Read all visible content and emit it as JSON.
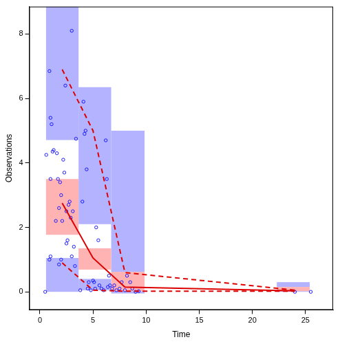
{
  "chart_data": {
    "type": "scatter",
    "x_label": "Time",
    "y_label": "Observations",
    "xlim": [
      -1,
      27.6
    ],
    "xticks": [
      0,
      5,
      10,
      15,
      20,
      25
    ],
    "ylim": [
      -0.56,
      8.85
    ],
    "yticks": [
      0,
      2,
      4,
      6,
      8
    ],
    "grid": false,
    "bands": [
      {
        "color": "#b3b3ff",
        "x0": 0.58,
        "x1": 3.64,
        "y0": 4.71,
        "y1": 8.85
      },
      {
        "color": "#b3b3ff",
        "x0": 3.64,
        "x1": 6.71,
        "y0": 2.1,
        "y1": 6.35
      },
      {
        "color": "#b3b3ff",
        "x0": 6.71,
        "x1": 9.85,
        "y0": 0.62,
        "y1": 5.0
      },
      {
        "color": "#b3b3ff",
        "x0": 22.3,
        "x1": 25.4,
        "y0": 0.15,
        "y1": 0.3
      },
      {
        "color": "#ffb3b3",
        "x0": 0.58,
        "x1": 3.64,
        "y0": 1.77,
        "y1": 3.5
      },
      {
        "color": "#ffb3b3",
        "x0": 3.64,
        "x1": 6.71,
        "y0": 0.69,
        "y1": 1.35
      },
      {
        "color": "#ffb3b3",
        "x0": 6.71,
        "x1": 9.85,
        "y0": 0.02,
        "y1": 0.62
      },
      {
        "color": "#ffb3b3",
        "x0": 22.3,
        "x1": 25.4,
        "y0": 0.02,
        "y1": 0.15
      },
      {
        "color": "#b3b3ff",
        "x0": 0.58,
        "x1": 3.64,
        "y0": 0.0,
        "y1": 1.05
      },
      {
        "color": "#b3b3ff",
        "x0": 3.64,
        "x1": 6.71,
        "y0": 0.05,
        "y1": 0.4
      },
      {
        "color": "#b3b3ff",
        "x0": 6.71,
        "x1": 9.85,
        "y0": -0.05,
        "y1": 0.02
      },
      {
        "color": "#b3b3ff",
        "x0": 22.3,
        "x1": 25.4,
        "y0": 0.0,
        "y1": 0.02
      }
    ],
    "series": [
      {
        "type": "scatter",
        "color": "#1a1aff",
        "marker": "open_circle",
        "x": [
          0.5,
          0.6,
          0.9,
          1.0,
          1.1,
          1.0,
          0.9,
          1.0,
          1.2,
          1.3,
          1.5,
          1.6,
          1.7,
          1.8,
          1.9,
          2.0,
          2.1,
          2.2,
          2.3,
          2.4,
          2.5,
          2.6,
          2.7,
          2.8,
          2.9,
          3.0,
          3.1,
          3.2,
          3.3,
          3.4,
          2.0,
          2.5,
          3.0,
          1.8,
          3.8,
          4.0,
          4.1,
          4.2,
          4.3,
          4.4,
          4.5,
          4.6,
          4.8,
          5.0,
          5.1,
          5.2,
          5.3,
          5.5,
          5.6,
          5.8,
          6.0,
          6.2,
          6.3,
          6.4,
          6.5,
          6.6,
          6.8,
          7.0,
          7.2,
          7.5,
          7.7,
          8.0,
          8.2,
          8.5,
          8.7,
          9.0,
          9.3,
          24.0,
          25.5
        ],
        "values": [
          0.0,
          4.25,
          6.85,
          5.4,
          5.2,
          3.5,
          1.0,
          1.1,
          4.35,
          4.4,
          2.2,
          4.3,
          3.5,
          2.6,
          3.4,
          3.0,
          2.2,
          4.1,
          3.7,
          6.4,
          2.5,
          1.6,
          2.7,
          2.8,
          2.3,
          8.1,
          2.5,
          1.4,
          0.8,
          4.75,
          1.0,
          1.5,
          1.1,
          0.85,
          0.05,
          2.8,
          5.9,
          4.9,
          5.0,
          3.8,
          0.1,
          0.3,
          0.05,
          0.35,
          0.3,
          0.1,
          2.0,
          1.6,
          0.2,
          0.1,
          0.05,
          4.7,
          3.5,
          0.15,
          0.5,
          0.2,
          0.1,
          0.2,
          0.05,
          0.1,
          0.3,
          0.05,
          0.5,
          0.3,
          0.1,
          0.0,
          0.02,
          0.0,
          0.0
        ]
      },
      {
        "type": "line",
        "color": "#dd0000",
        "line_style": "dashed",
        "x": [
          2.1,
          5.0,
          8.0,
          24.0
        ],
        "values": [
          6.9,
          5.0,
          0.6,
          0.05
        ]
      },
      {
        "type": "line",
        "color": "#dd0000",
        "line_style": "solid",
        "x": [
          2.1,
          5.0,
          8.0,
          24.0
        ],
        "values": [
          2.75,
          1.05,
          0.15,
          0.03
        ]
      },
      {
        "type": "line",
        "color": "#dd0000",
        "line_style": "dashed",
        "x": [
          2.1,
          5.0,
          8.0,
          24.0
        ],
        "values": [
          0.9,
          0.05,
          0.02,
          0.02
        ]
      }
    ]
  }
}
